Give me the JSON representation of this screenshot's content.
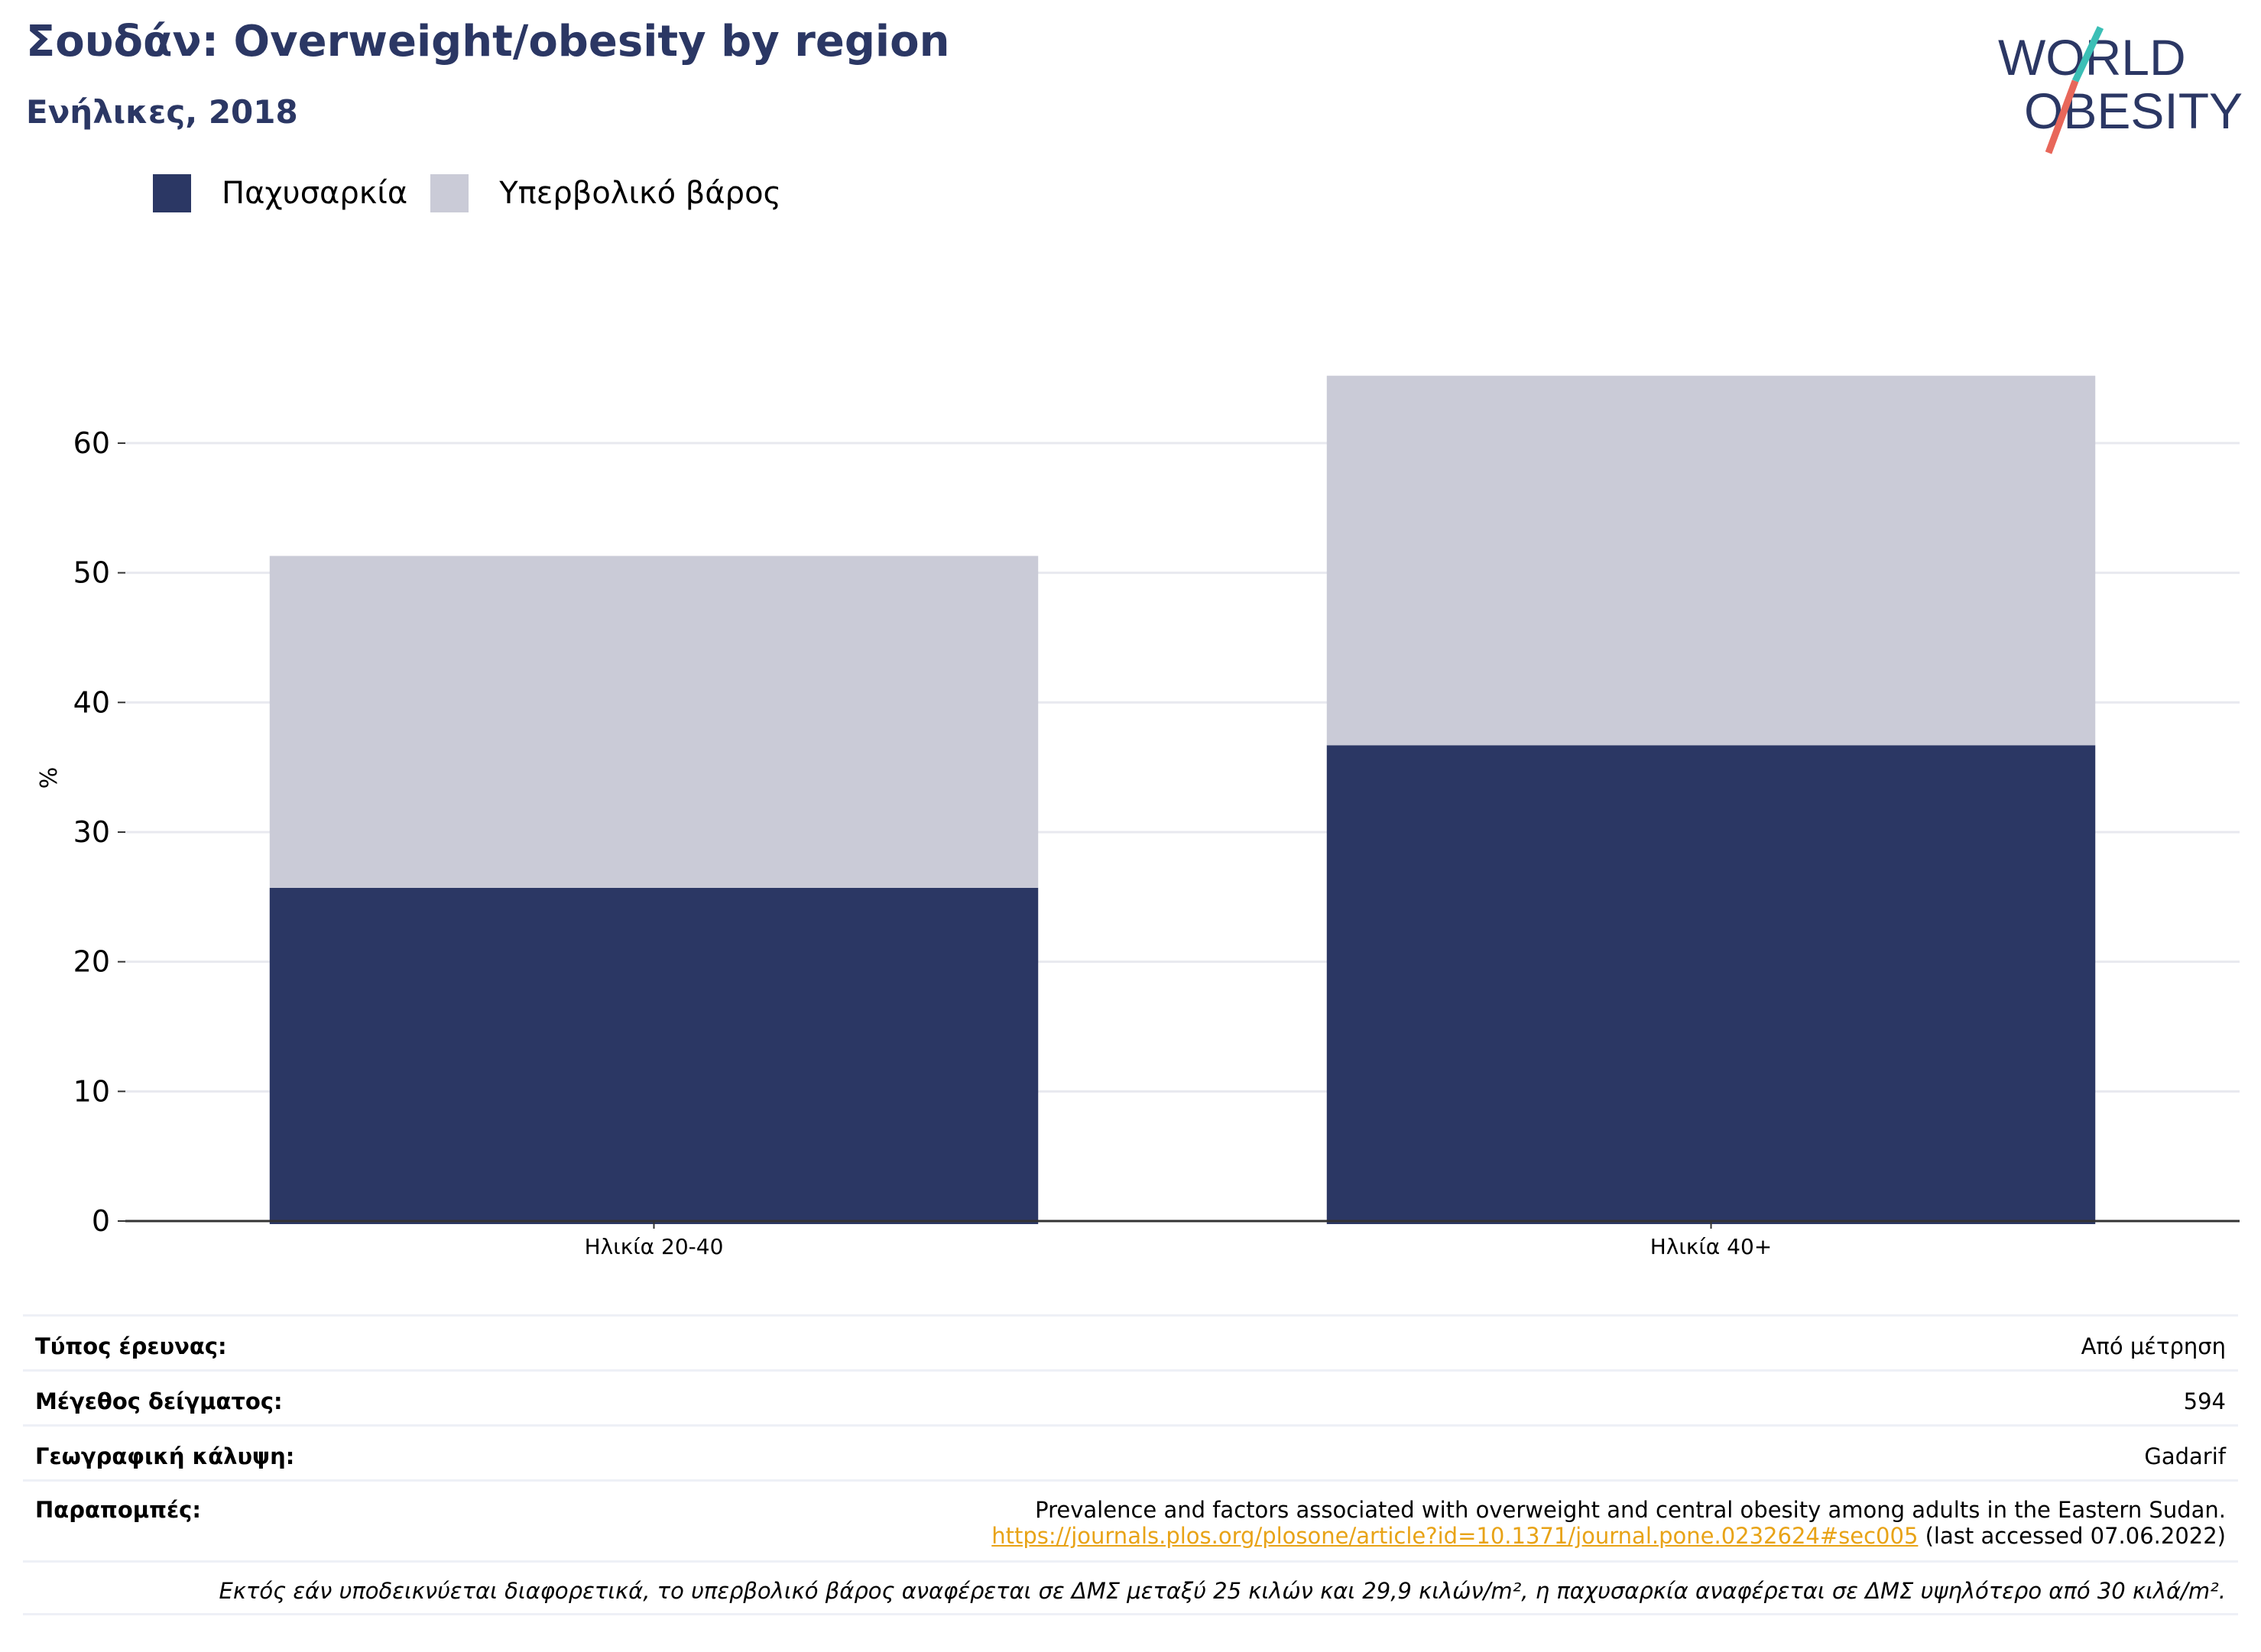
{
  "header": {
    "title": "Σουδάν: Overweight/obesity by region",
    "subtitle": "Ενήλικες, 2018",
    "logo_line1": "WORLD",
    "logo_line2": "OBESITY"
  },
  "legend": [
    {
      "label": "Παχυσαρκία",
      "color": "#2b3764"
    },
    {
      "label": "Υπερβολικό βάρος",
      "color": "#cacbd7"
    }
  ],
  "chart_data": {
    "type": "bar",
    "stacked": true,
    "categories": [
      "Ηλικία 20-40",
      "Ηλικία 40+"
    ],
    "series": [
      {
        "name": "Παχυσαρκία",
        "values": [
          25.7,
          36.7
        ],
        "color": "#2b3764"
      },
      {
        "name": "Υπερβολικό βάρος",
        "values": [
          25.6,
          28.5
        ],
        "color": "#cacbd7"
      }
    ],
    "ylabel": "%",
    "ylim": [
      0,
      65.3
    ],
    "yticks": [
      0,
      10,
      20,
      30,
      40,
      50,
      60
    ],
    "grid": true,
    "legend_position": "top-left"
  },
  "info": {
    "survey_type_label": "Τύπος έρευνας:",
    "survey_type_value": "Από μέτρηση",
    "sample_size_label": "Μέγεθος δείγματος:",
    "sample_size_value": "594",
    "coverage_label": "Γεωγραφική κάλυψη:",
    "coverage_value": "Gadarif",
    "references_label": "Παραπομπές:",
    "reference_text": "Prevalence and factors associated with overweight and central obesity among adults in the Eastern Sudan.",
    "reference_link": "https://journals.plos.org/plosone/article?id=10.1371/journal.pone.0232624#sec005",
    "reference_accessed": " (last accessed 07.06.2022)",
    "footnote": "Εκτός εάν υποδεικνύεται διαφορετικά, το υπερβολικό βάρος αναφέρεται σε ΔΜΣ μεταξύ 25 κιλών και 29,9 κιλών/m², η παχυσαρκία αναφέρεται σε ΔΜΣ υψηλότερο από 30 κιλά/m²."
  }
}
